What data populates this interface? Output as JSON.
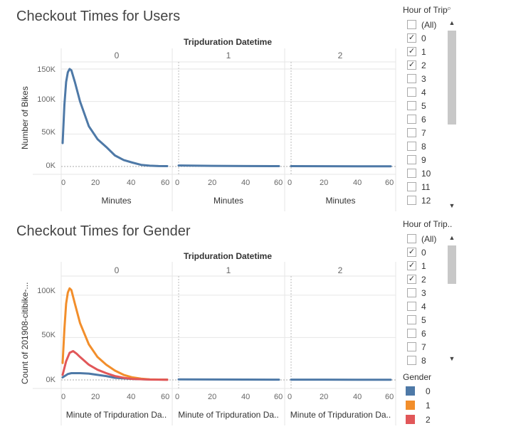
{
  "charts": [
    {
      "title": "Checkout Times for Users",
      "column_header": "Tripduration Datetime",
      "panes": [
        "0",
        "1",
        "2"
      ],
      "y_axis_label": "Number of Bikes",
      "y_ticks": [
        "150K",
        "100K",
        "50K",
        "0K"
      ],
      "x_ticks": [
        "0",
        "20",
        "40",
        "60"
      ],
      "x_labels": [
        "Minutes",
        "Minutes",
        "Minutes"
      ]
    },
    {
      "title": "Checkout Times for Gender",
      "column_header": "Tripduration Datetime",
      "panes": [
        "0",
        "1",
        "2"
      ],
      "y_axis_label": "Count of 201908-citibike-...",
      "y_ticks": [
        "100K",
        "50K",
        "0K"
      ],
      "x_ticks": [
        "0",
        "20",
        "40",
        "60"
      ],
      "x_labels": [
        "Minute of Tripduration Da..",
        "Minute of Tripduration Da..",
        "Minute of Tripduration Da.."
      ]
    }
  ],
  "chart_data": [
    {
      "type": "line",
      "title": "Checkout Times for Users",
      "xlabel": "Minutes",
      "ylabel": "Number of Bikes",
      "ylim": [
        0,
        150000
      ],
      "xlim": [
        0,
        60
      ],
      "panes": [
        {
          "name": "0",
          "series": [
            {
              "name": "",
              "x": [
                0,
                1,
                2,
                3,
                4,
                5,
                7,
                10,
                15,
                20,
                25,
                30,
                35,
                40,
                45,
                50,
                55,
                60
              ],
              "y": [
                36000,
                95000,
                130000,
                145000,
                150000,
                148000,
                130000,
                100000,
                62000,
                42000,
                30000,
                17000,
                10000,
                6000,
                2500,
                1200,
                700,
                500
              ]
            }
          ]
        },
        {
          "name": "1",
          "series": [
            {
              "name": "",
              "x": [
                0,
                20,
                40,
                60
              ],
              "y": [
                1500,
                1000,
                700,
                500
              ]
            }
          ]
        },
        {
          "name": "2",
          "series": [
            {
              "name": "",
              "x": [
                0,
                20,
                40,
                60
              ],
              "y": [
                500,
                400,
                300,
                300
              ]
            }
          ]
        }
      ]
    },
    {
      "type": "line",
      "title": "Checkout Times for Gender",
      "xlabel": "Minute of Tripduration Da..",
      "ylabel": "Count of 201908-citibike-...",
      "ylim": [
        0,
        115000
      ],
      "xlim": [
        0,
        60
      ],
      "legend": "Gender",
      "panes": [
        {
          "name": "0",
          "series": [
            {
              "name": "0",
              "x": [
                0,
                3,
                5,
                10,
                15,
                20,
                25,
                30,
                40,
                50,
                60
              ],
              "y": [
                3000,
                7000,
                8000,
                8000,
                7500,
                6000,
                4500,
                2500,
                1200,
                500,
                300
              ]
            },
            {
              "name": "1",
              "x": [
                0,
                1,
                2,
                3,
                4,
                5,
                7,
                10,
                15,
                20,
                25,
                30,
                35,
                40,
                45,
                50,
                55,
                60
              ],
              "y": [
                20000,
                60000,
                90000,
                103000,
                108000,
                106000,
                90000,
                67000,
                42000,
                27000,
                18000,
                11000,
                6000,
                3000,
                1500,
                700,
                400,
                300
              ]
            },
            {
              "name": "2",
              "x": [
                0,
                2,
                4,
                6,
                8,
                10,
                15,
                20,
                25,
                30,
                35,
                40,
                50,
                60
              ],
              "y": [
                6000,
                22000,
                32000,
                34000,
                31000,
                27000,
                18000,
                12000,
                8000,
                4500,
                2500,
                1200,
                400,
                200
              ]
            }
          ]
        },
        {
          "name": "1",
          "series": [
            {
              "name": "0",
              "x": [
                0,
                20,
                40,
                60
              ],
              "y": [
                700,
                500,
                400,
                300
              ]
            }
          ]
        },
        {
          "name": "2",
          "series": [
            {
              "name": "0",
              "x": [
                0,
                20,
                40,
                60
              ],
              "y": [
                300,
                300,
                200,
                200
              ]
            }
          ]
        }
      ]
    }
  ],
  "filters": [
    {
      "title": "Hour of Trip",
      "all_label": "(All)",
      "items": [
        {
          "label": "0",
          "checked": true
        },
        {
          "label": "1",
          "checked": true
        },
        {
          "label": "2",
          "checked": true
        },
        {
          "label": "3",
          "checked": false
        },
        {
          "label": "4",
          "checked": false
        },
        {
          "label": "5",
          "checked": false
        },
        {
          "label": "6",
          "checked": false
        },
        {
          "label": "7",
          "checked": false
        },
        {
          "label": "8",
          "checked": false
        },
        {
          "label": "9",
          "checked": false
        },
        {
          "label": "10",
          "checked": false
        },
        {
          "label": "11",
          "checked": false
        },
        {
          "label": "12",
          "checked": false
        }
      ]
    },
    {
      "title": "Hour of Trip..",
      "all_label": "(All)",
      "items": [
        {
          "label": "0",
          "checked": true
        },
        {
          "label": "1",
          "checked": true
        },
        {
          "label": "2",
          "checked": true
        },
        {
          "label": "3",
          "checked": false
        },
        {
          "label": "4",
          "checked": false
        },
        {
          "label": "5",
          "checked": false
        },
        {
          "label": "6",
          "checked": false
        },
        {
          "label": "7",
          "checked": false
        },
        {
          "label": "8",
          "checked": false
        }
      ]
    }
  ],
  "legend": {
    "title": "Gender",
    "items": [
      {
        "label": "0",
        "color": "#4e79a7"
      },
      {
        "label": "1",
        "color": "#f28e2b"
      },
      {
        "label": "2",
        "color": "#e15759"
      }
    ]
  },
  "colors": {
    "line_users": "#4e79a7",
    "gridline": "#e6e6e6",
    "zero_line": "#aaaaaa"
  }
}
